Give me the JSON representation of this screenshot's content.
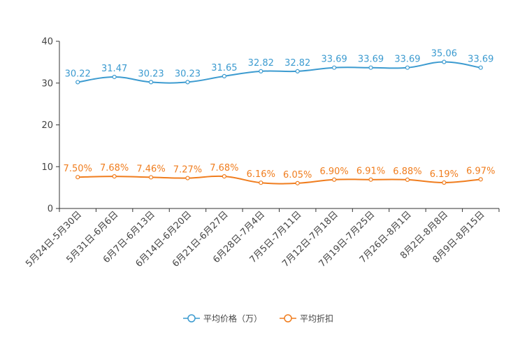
{
  "chart_data": {
    "type": "line",
    "title": "",
    "xlabel": "",
    "ylabel": "",
    "ylim": [
      0,
      40
    ],
    "yticks": [
      0,
      10,
      20,
      30,
      40
    ],
    "grid": false,
    "legend_position": "bottom-center",
    "categories": [
      "5月24日-5月30日",
      "5月31日-6月6日",
      "6月7日-6月13日",
      "6月14日-6月20日",
      "6月21日-6月27日",
      "6月28日-7月4日",
      "7月5日-7月11日",
      "7月12日-7月18日",
      "7月19日-7月25日",
      "7月26日-8月1日",
      "8月2日-8月8日",
      "8月9日-8月15日"
    ],
    "series": [
      {
        "name": "平均价格（万）",
        "color": "#3c9bd0",
        "values": [
          30.22,
          31.47,
          30.23,
          30.23,
          31.65,
          32.82,
          32.82,
          33.69,
          33.69,
          33.69,
          35.06,
          33.69
        ],
        "labels": [
          "30.22",
          "31.47",
          "30.23",
          "30.23",
          "31.65",
          "32.82",
          "32.82",
          "33.69",
          "33.69",
          "33.69",
          "35.06",
          "33.69"
        ]
      },
      {
        "name": "平均折扣",
        "color": "#f07d1e",
        "values": [
          7.5,
          7.68,
          7.46,
          7.27,
          7.68,
          6.16,
          6.05,
          6.9,
          6.91,
          6.88,
          6.19,
          6.97
        ],
        "labels": [
          "7.50%",
          "7.68%",
          "7.46%",
          "7.27%",
          "7.68%",
          "6.16%",
          "6.05%",
          "6.90%",
          "6.91%",
          "6.88%",
          "6.19%",
          "6.97%"
        ]
      }
    ]
  }
}
